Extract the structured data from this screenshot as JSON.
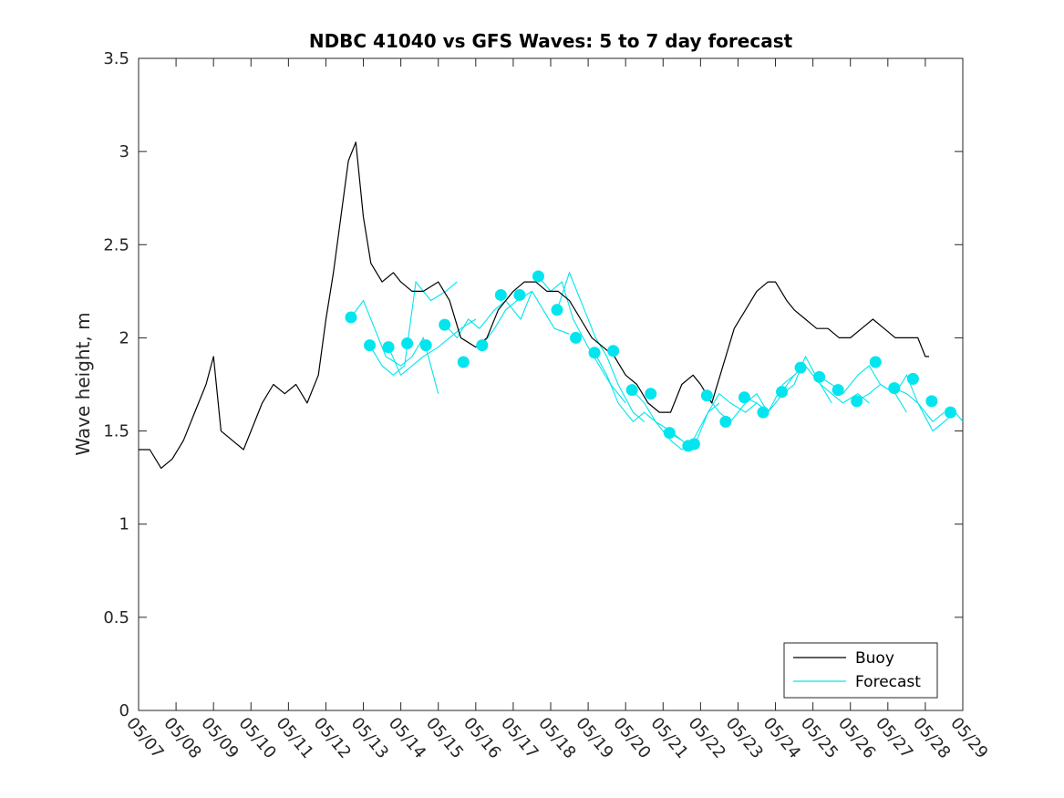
{
  "chart_data": {
    "type": "line",
    "title": "NDBC 41040 vs GFS Waves: 5 to 7 day forecast",
    "xlabel": "",
    "ylabel": "Wave height, m",
    "x_tick_labels": [
      "05/07",
      "05/08",
      "05/09",
      "05/10",
      "05/11",
      "05/12",
      "05/13",
      "05/14",
      "05/15",
      "05/16",
      "05/17",
      "05/18",
      "05/19",
      "05/20",
      "05/21",
      "05/22",
      "05/23",
      "05/24",
      "05/25",
      "05/26",
      "05/27",
      "05/28",
      "05/29"
    ],
    "xlim_days": [
      0,
      22
    ],
    "ylim": [
      0,
      3.5
    ],
    "y_ticks": [
      0,
      0.5,
      1,
      1.5,
      2,
      2.5,
      3,
      3.5
    ],
    "y_tick_labels": [
      "0",
      "0.5",
      "1",
      "1.5",
      "2",
      "2.5",
      "3",
      "3.5"
    ],
    "grid": false,
    "legend_position": "bottom-right",
    "colors": {
      "buoy": "#000000",
      "forecast": "#00e5ee",
      "axes": "#262626"
    },
    "series": [
      {
        "name": "Buoy",
        "style": "line",
        "x": [
          0.0,
          0.3,
          0.6,
          0.9,
          1.2,
          1.5,
          1.8,
          2.0,
          2.2,
          2.5,
          2.8,
          3.0,
          3.3,
          3.6,
          3.9,
          4.2,
          4.5,
          4.8,
          5.0,
          5.2,
          5.4,
          5.6,
          5.8,
          6.0,
          6.2,
          6.5,
          6.8,
          7.0,
          7.3,
          7.6,
          8.0,
          8.3,
          8.6,
          9.0,
          9.3,
          9.6,
          10.0,
          10.3,
          10.6,
          10.9,
          11.2,
          11.5,
          11.8,
          12.1,
          12.4,
          12.7,
          13.0,
          13.3,
          13.6,
          13.9,
          14.2,
          14.5,
          14.8,
          15.0,
          15.3,
          15.6,
          15.9,
          16.2,
          16.5,
          16.8,
          17.0,
          17.3,
          17.5,
          17.8,
          18.1,
          18.4,
          18.7,
          19.0,
          19.3,
          19.6,
          19.9,
          20.2,
          20.5,
          20.8,
          21.0,
          21.1
        ],
        "y": [
          1.4,
          1.4,
          1.3,
          1.35,
          1.45,
          1.6,
          1.75,
          1.9,
          1.5,
          1.45,
          1.4,
          1.5,
          1.65,
          1.75,
          1.7,
          1.75,
          1.65,
          1.8,
          2.1,
          2.35,
          2.65,
          2.95,
          3.05,
          2.65,
          2.4,
          2.3,
          2.35,
          2.3,
          2.25,
          2.25,
          2.3,
          2.2,
          2.0,
          1.95,
          2.0,
          2.15,
          2.25,
          2.3,
          2.3,
          2.25,
          2.25,
          2.2,
          2.1,
          2.0,
          1.95,
          1.9,
          1.8,
          1.75,
          1.65,
          1.6,
          1.6,
          1.75,
          1.8,
          1.75,
          1.65,
          1.85,
          2.05,
          2.15,
          2.25,
          2.3,
          2.3,
          2.2,
          2.15,
          2.1,
          2.05,
          2.05,
          2.0,
          2.0,
          2.05,
          2.1,
          2.05,
          2.0,
          2.0,
          2.0,
          1.9,
          1.9
        ]
      },
      {
        "name": "Forecast",
        "style": "line+markers",
        "marker_x": [
          5.67,
          6.17,
          6.67,
          7.17,
          7.67,
          8.17,
          8.67,
          9.17,
          9.67,
          10.17,
          10.67,
          11.17,
          11.67,
          12.17,
          12.67,
          13.17,
          13.67,
          14.17,
          14.67,
          14.83,
          15.17,
          15.67,
          16.17,
          16.67,
          17.17,
          17.67,
          18.17,
          18.67,
          19.17,
          19.67,
          20.17,
          20.67,
          21.17,
          21.67
        ],
        "marker_y": [
          2.11,
          1.96,
          1.95,
          1.97,
          1.96,
          2.07,
          1.87,
          1.96,
          2.23,
          2.23,
          2.33,
          2.15,
          2.0,
          1.92,
          1.93,
          1.72,
          1.7,
          1.49,
          1.42,
          1.43,
          1.69,
          1.55,
          1.68,
          1.6,
          1.71,
          1.84,
          1.79,
          1.72,
          1.66,
          1.87,
          1.73,
          1.78,
          1.66,
          1.6
        ],
        "ensemble": [
          {
            "x": [
              5.67,
              6.0,
              6.3,
              6.6,
              7.0,
              7.3,
              7.6,
              8.0
            ],
            "y": [
              2.11,
              2.2,
              2.05,
              1.9,
              1.85,
              1.9,
              2.0,
              1.7
            ]
          },
          {
            "x": [
              6.17,
              6.5,
              6.8,
              7.1,
              7.4,
              7.8,
              8.2,
              8.5
            ],
            "y": [
              1.96,
              1.85,
              1.8,
              1.85,
              2.3,
              2.2,
              2.25,
              2.3
            ]
          },
          {
            "x": [
              6.67,
              7.0,
              7.3,
              7.6,
              8.0,
              8.3,
              8.6,
              9.0
            ],
            "y": [
              1.95,
              1.8,
              1.85,
              1.9,
              1.95,
              2.0,
              2.05,
              2.1
            ]
          },
          {
            "x": [
              8.17,
              8.5,
              8.8,
              9.1,
              9.5,
              9.8,
              10.2,
              10.5
            ],
            "y": [
              2.07,
              2.0,
              2.1,
              2.05,
              2.15,
              2.2,
              2.1,
              2.25
            ]
          },
          {
            "x": [
              9.17,
              9.5,
              9.8,
              10.1,
              10.5,
              10.8,
              11.1,
              11.5
            ],
            "y": [
              1.96,
              2.05,
              2.15,
              2.2,
              2.25,
              2.15,
              2.05,
              2.02
            ]
          },
          {
            "x": [
              10.67,
              11.0,
              11.3,
              11.6,
              12.0,
              12.3,
              12.6,
              13.0
            ],
            "y": [
              2.33,
              2.25,
              2.3,
              2.1,
              1.95,
              1.85,
              1.75,
              1.65
            ]
          },
          {
            "x": [
              11.17,
              11.5,
              11.8,
              12.2,
              12.5,
              12.8,
              13.2,
              13.5
            ],
            "y": [
              2.15,
              2.35,
              2.2,
              2.0,
              1.9,
              1.75,
              1.6,
              1.55
            ]
          },
          {
            "x": [
              12.17,
              12.5,
              12.8,
              13.2,
              13.5,
              13.8,
              14.2,
              14.5
            ],
            "y": [
              1.92,
              1.8,
              1.65,
              1.55,
              1.6,
              1.55,
              1.5,
              1.45
            ]
          },
          {
            "x": [
              13.17,
              13.5,
              13.8,
              14.2,
              14.5,
              14.8,
              15.2,
              15.5
            ],
            "y": [
              1.72,
              1.65,
              1.55,
              1.45,
              1.4,
              1.45,
              1.6,
              1.65
            ]
          },
          {
            "x": [
              14.17,
              14.5,
              14.8,
              15.2,
              15.5,
              15.8,
              16.2,
              16.5
            ],
            "y": [
              1.49,
              1.45,
              1.4,
              1.6,
              1.7,
              1.65,
              1.6,
              1.65
            ]
          },
          {
            "x": [
              15.17,
              15.5,
              15.8,
              16.2,
              16.5,
              16.8,
              17.2,
              17.5
            ],
            "y": [
              1.69,
              1.6,
              1.55,
              1.65,
              1.7,
              1.6,
              1.75,
              1.8
            ]
          },
          {
            "x": [
              16.17,
              16.5,
              16.8,
              17.2,
              17.5,
              17.8,
              18.2,
              18.5
            ],
            "y": [
              1.68,
              1.65,
              1.6,
              1.7,
              1.75,
              1.9,
              1.75,
              1.65
            ]
          },
          {
            "x": [
              17.17,
              17.5,
              17.8,
              18.2,
              18.5,
              18.8,
              19.2,
              19.5
            ],
            "y": [
              1.71,
              1.8,
              1.85,
              1.75,
              1.7,
              1.65,
              1.7,
              1.65
            ]
          },
          {
            "x": [
              18.17,
              18.5,
              18.8,
              19.2,
              19.5,
              19.8,
              20.2,
              20.5
            ],
            "y": [
              1.79,
              1.75,
              1.7,
              1.8,
              1.85,
              1.75,
              1.7,
              1.6
            ]
          },
          {
            "x": [
              19.17,
              19.5,
              19.8,
              20.2,
              20.5,
              20.8,
              21.2,
              21.5
            ],
            "y": [
              1.66,
              1.7,
              1.75,
              1.7,
              1.8,
              1.65,
              1.55,
              1.6
            ]
          },
          {
            "x": [
              20.17,
              20.5,
              20.8,
              21.2,
              21.5,
              21.8,
              22.0
            ],
            "y": [
              1.73,
              1.7,
              1.65,
              1.5,
              1.55,
              1.6,
              1.55
            ]
          }
        ]
      }
    ],
    "legend": [
      {
        "label": "Buoy",
        "color": "#000000"
      },
      {
        "label": "Forecast",
        "color": "#00e5ee"
      }
    ]
  }
}
